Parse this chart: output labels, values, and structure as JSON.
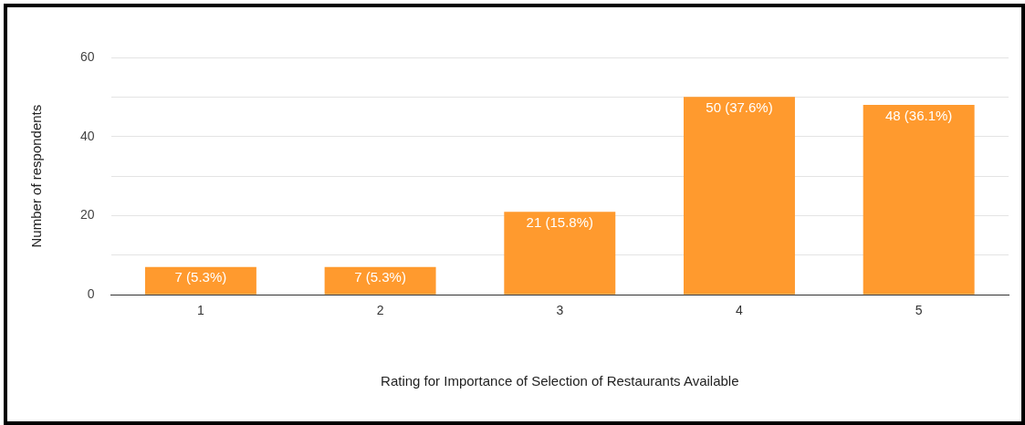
{
  "chart_data": {
    "type": "bar",
    "xlabel": "Rating for Importance of Selection of Restaurants Available",
    "ylabel": "Number of respondents",
    "categories": [
      "1",
      "2",
      "3",
      "4",
      "5"
    ],
    "values": [
      7,
      7,
      21,
      50,
      48
    ],
    "value_labels": [
      "7 (5.3%)",
      "7 (5.3%)",
      "21 (15.8%)",
      "50 (37.6%)",
      "48 (36.1%)"
    ],
    "color": "#ff9a2e",
    "ylim": [
      0,
      60
    ],
    "yticks": [
      0,
      {
        "value": 10,
        "label": null
      },
      20,
      {
        "value": 30,
        "label": null
      },
      40,
      {
        "value": 50,
        "label": null
      },
      60
    ],
    "grid": "y",
    "legend": false
  }
}
